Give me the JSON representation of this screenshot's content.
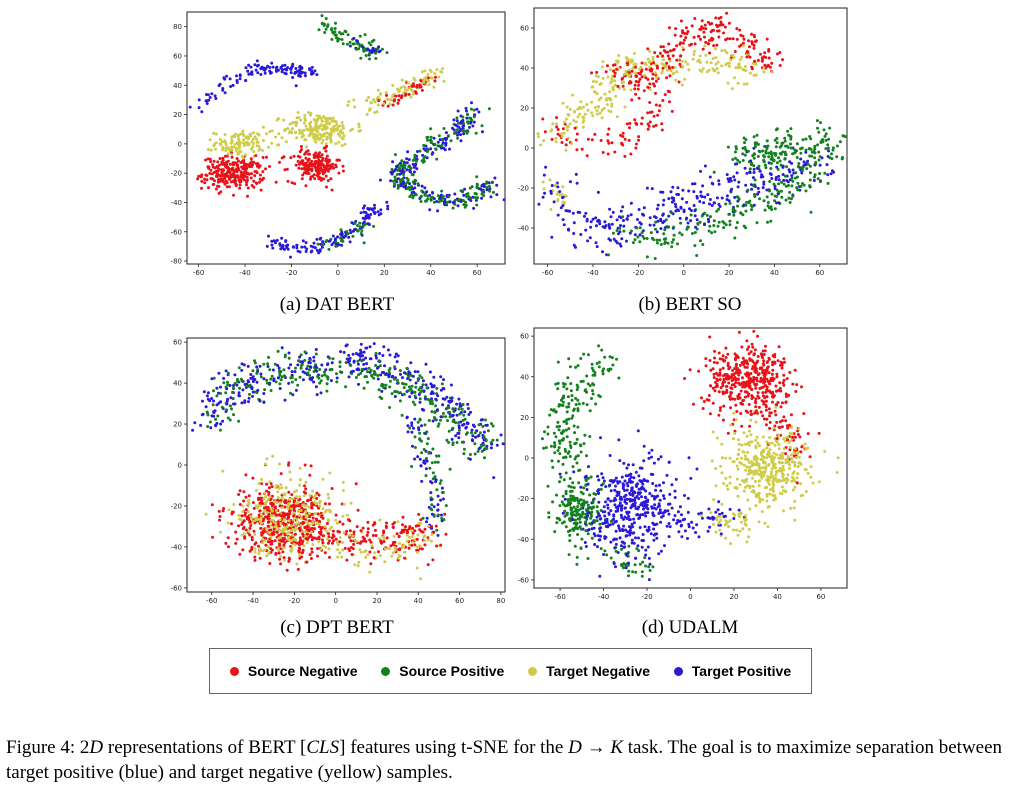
{
  "colors": {
    "source_negative": "#e8131a",
    "source_positive": "#14811f",
    "target_negative": "#cfcc4a",
    "target_positive": "#2a1ad6"
  },
  "legend": [
    {
      "label": "Source Negative",
      "color": "#e8131a"
    },
    {
      "label": "Source Positive",
      "color": "#14811f"
    },
    {
      "label": "Target Negative",
      "color": "#cfcc4a"
    },
    {
      "label": "Target Positive",
      "color": "#2a1ad6"
    }
  ],
  "figure_caption": {
    "lead": "Figure 4: 2",
    "d": "D",
    "mid1": " representations of BERT [",
    "cls": "CLS",
    "mid2": "] features using t-SNE for the ",
    "task": "D → K",
    "tail": " task. The goal is to maximize separation between target positive (blue) and target negative (yellow) samples."
  },
  "chart_data": [
    {
      "type": "scatter",
      "caption": "(a) DAT BERT",
      "xlim": [
        -65,
        72
      ],
      "ylim": [
        -82,
        90
      ],
      "xticks": [
        -60,
        -40,
        -20,
        0,
        20,
        40,
        60
      ],
      "yticks": [
        -80,
        -60,
        -40,
        -20,
        0,
        20,
        40,
        60,
        80
      ],
      "clusters": [
        {
          "class": "target_positive",
          "path": [
            [
              -62,
              24
            ],
            [
              -50,
              38
            ],
            [
              -38,
              50
            ],
            [
              -28,
              52
            ],
            [
              -18,
              50
            ],
            [
              -10,
              48
            ]
          ],
          "spread": 2.5,
          "n": 120
        },
        {
          "class": "source_positive",
          "path": [
            [
              -8,
              84
            ],
            [
              -2,
              76
            ],
            [
              6,
              70
            ],
            [
              12,
              66
            ],
            [
              16,
              62
            ]
          ],
          "spread": 2.5,
          "n": 70
        },
        {
          "class": "target_positive",
          "path": [
            [
              5,
              72
            ],
            [
              12,
              66
            ],
            [
              16,
              62
            ]
          ],
          "spread": 1.5,
          "n": 20
        },
        {
          "class": "source_negative",
          "center": [
            -45,
            -20
          ],
          "rx": 12,
          "ry": 10,
          "n": 260
        },
        {
          "class": "target_negative",
          "center": [
            -42,
            0
          ],
          "rx": 10,
          "ry": 8,
          "n": 110
        },
        {
          "class": "source_negative",
          "center": [
            -10,
            -15
          ],
          "rx": 10,
          "ry": 10,
          "n": 180
        },
        {
          "class": "target_negative",
          "center": [
            -8,
            10
          ],
          "rx": 14,
          "ry": 10,
          "n": 200
        },
        {
          "class": "target_negative",
          "path": [
            [
              10,
              26
            ],
            [
              20,
              32
            ],
            [
              30,
              38
            ],
            [
              38,
              44
            ],
            [
              42,
              46
            ]
          ],
          "spread": 3,
          "n": 90
        },
        {
          "class": "source_negative",
          "path": [
            [
              20,
              28
            ],
            [
              28,
              34
            ],
            [
              34,
              40
            ],
            [
              40,
              46
            ]
          ],
          "spread": 2.5,
          "n": 40
        },
        {
          "class": "target_positive",
          "path": [
            [
              -30,
              -66
            ],
            [
              -20,
              -70
            ],
            [
              -10,
              -72
            ],
            [
              0,
              -66
            ],
            [
              8,
              -58
            ],
            [
              14,
              -48
            ],
            [
              18,
              -44
            ]
          ],
          "spread": 2.5,
          "n": 130
        },
        {
          "class": "source_positive",
          "path": [
            [
              -5,
              -70
            ],
            [
              5,
              -62
            ],
            [
              12,
              -52
            ]
          ],
          "spread": 2.5,
          "n": 30
        },
        {
          "class": "target_positive",
          "path": [
            [
              58,
              28
            ],
            [
              56,
              12
            ],
            [
              44,
              0
            ],
            [
              30,
              -12
            ],
            [
              26,
              -22
            ],
            [
              34,
              -34
            ],
            [
              50,
              -40
            ],
            [
              62,
              -34
            ],
            [
              68,
              -26
            ]
          ],
          "spread": 3,
          "n": 200
        },
        {
          "class": "source_positive",
          "path": [
            [
              58,
              26
            ],
            [
              55,
              10
            ],
            [
              42,
              -2
            ],
            [
              30,
              -14
            ],
            [
              28,
              -24
            ],
            [
              36,
              -36
            ],
            [
              52,
              -40
            ],
            [
              64,
              -30
            ]
          ],
          "spread": 3,
          "n": 180
        }
      ]
    },
    {
      "type": "scatter",
      "caption": "(b) BERT SO",
      "xlim": [
        -66,
        72
      ],
      "ylim": [
        -58,
        70
      ],
      "xticks": [
        -60,
        -40,
        -20,
        0,
        20,
        40,
        60
      ],
      "yticks": [
        -40,
        -20,
        0,
        20,
        40,
        60
      ],
      "clusters": [
        {
          "class": "source_negative",
          "path": [
            [
              -30,
              38
            ],
            [
              -20,
              36
            ],
            [
              -8,
              42
            ],
            [
              0,
              56
            ],
            [
              10,
              60
            ],
            [
              20,
              56
            ],
            [
              30,
              50
            ],
            [
              40,
              42
            ]
          ],
          "spread": 4,
          "n": 230
        },
        {
          "class": "source_negative",
          "path": [
            [
              -58,
              10
            ],
            [
              -48,
              4
            ],
            [
              -34,
              0
            ],
            [
              -20,
              6
            ],
            [
              -10,
              20
            ],
            [
              -16,
              30
            ]
          ],
          "spread": 4,
          "n": 90
        },
        {
          "class": "target_negative",
          "path": [
            [
              -38,
              28
            ],
            [
              -28,
              38
            ],
            [
              -18,
              44
            ],
            [
              -6,
              40
            ],
            [
              10,
              42
            ],
            [
              24,
              42
            ],
            [
              32,
              40
            ]
          ],
          "spread": 4,
          "n": 170
        },
        {
          "class": "target_negative",
          "path": [
            [
              -60,
              0
            ],
            [
              -54,
              8
            ],
            [
              -48,
              16
            ],
            [
              -40,
              22
            ],
            [
              -30,
              24
            ]
          ],
          "spread": 4,
          "n": 80
        },
        {
          "class": "target_negative",
          "path": [
            [
              -56,
              -18
            ],
            [
              -52,
              -28
            ]
          ],
          "spread": 3,
          "n": 20
        },
        {
          "class": "target_positive",
          "path": [
            [
              -56,
              -20
            ],
            [
              -48,
              -34
            ],
            [
              -36,
              -40
            ],
            [
              -20,
              -38
            ],
            [
              -4,
              -30
            ],
            [
              10,
              -26
            ],
            [
              24,
              -18
            ],
            [
              36,
              -14
            ],
            [
              48,
              -12
            ],
            [
              58,
              -10
            ]
          ],
          "spread": 6,
          "n": 320
        },
        {
          "class": "source_positive",
          "path": [
            [
              -30,
              -44
            ],
            [
              -12,
              -46
            ],
            [
              4,
              -40
            ],
            [
              20,
              -36
            ],
            [
              34,
              -28
            ],
            [
              44,
              -22
            ],
            [
              54,
              -14
            ],
            [
              60,
              -4
            ],
            [
              62,
              2
            ],
            [
              50,
              4
            ],
            [
              36,
              0
            ],
            [
              22,
              -6
            ]
          ],
          "spread": 5,
          "n": 320
        },
        {
          "class": "source_positive",
          "path": [
            [
              30,
              -6
            ],
            [
              40,
              -4
            ],
            [
              48,
              -2
            ]
          ],
          "spread": 3,
          "n": 40
        }
      ]
    },
    {
      "type": "scatter",
      "caption": "(c) DPT BERT",
      "xlim": [
        -72,
        82
      ],
      "ylim": [
        -62,
        62
      ],
      "xticks": [
        -60,
        -40,
        -20,
        0,
        20,
        40,
        60,
        80
      ],
      "yticks": [
        -60,
        -40,
        -20,
        0,
        20,
        40,
        60
      ],
      "clusters": [
        {
          "class": "target_positive",
          "path": [
            [
              -62,
              22
            ],
            [
              -56,
              32
            ],
            [
              -44,
              40
            ],
            [
              -30,
              44
            ],
            [
              -14,
              44
            ],
            [
              0,
              50
            ],
            [
              14,
              52
            ],
            [
              26,
              48
            ],
            [
              36,
              42
            ],
            [
              48,
              34
            ],
            [
              58,
              26
            ],
            [
              66,
              18
            ],
            [
              74,
              8
            ]
          ],
          "spread": 5,
          "n": 380
        },
        {
          "class": "source_positive",
          "path": [
            [
              -60,
              24
            ],
            [
              -50,
              36
            ],
            [
              -36,
              42
            ],
            [
              -20,
              46
            ],
            [
              -4,
              44
            ],
            [
              10,
              46
            ],
            [
              22,
              44
            ],
            [
              34,
              40
            ],
            [
              46,
              30
            ],
            [
              56,
              22
            ],
            [
              66,
              14
            ],
            [
              72,
              8
            ]
          ],
          "spread": 5,
          "n": 300
        },
        {
          "class": "target_positive",
          "path": [
            [
              36,
              24
            ],
            [
              40,
              12
            ],
            [
              46,
              0
            ],
            [
              50,
              -20
            ],
            [
              46,
              -34
            ]
          ],
          "spread": 3,
          "n": 60
        },
        {
          "class": "source_positive",
          "path": [
            [
              38,
              22
            ],
            [
              44,
              8
            ],
            [
              48,
              -10
            ],
            [
              48,
              -28
            ]
          ],
          "spread": 3,
          "n": 50
        },
        {
          "class": "source_negative",
          "center": [
            -25,
            -28
          ],
          "rx": 22,
          "ry": 16,
          "n": 520
        },
        {
          "class": "target_negative",
          "center": [
            -22,
            -26
          ],
          "rx": 24,
          "ry": 17,
          "n": 300
        },
        {
          "class": "source_negative",
          "path": [
            [
              0,
              -34
            ],
            [
              14,
              -36
            ],
            [
              26,
              -34
            ],
            [
              36,
              -36
            ],
            [
              44,
              -32
            ]
          ],
          "spread": 6,
          "n": 130
        },
        {
          "class": "target_negative",
          "path": [
            [
              4,
              -36
            ],
            [
              18,
              -40
            ],
            [
              32,
              -40
            ],
            [
              42,
              -36
            ]
          ],
          "spread": 5,
          "n": 80
        }
      ]
    },
    {
      "type": "scatter",
      "caption": "(d) UDALM",
      "xlim": [
        -72,
        72
      ],
      "ylim": [
        -64,
        64
      ],
      "xticks": [
        -60,
        -40,
        -20,
        0,
        20,
        40,
        60
      ],
      "yticks": [
        -60,
        -40,
        -20,
        0,
        20,
        40,
        60
      ],
      "clusters": [
        {
          "class": "source_positive",
          "path": [
            [
              -38,
              48
            ],
            [
              -46,
              40
            ],
            [
              -56,
              30
            ],
            [
              -60,
              20
            ],
            [
              -60,
              6
            ],
            [
              -52,
              0
            ]
          ],
          "spread": 5,
          "n": 170
        },
        {
          "class": "source_positive",
          "center": [
            -52,
            -26
          ],
          "rx": 10,
          "ry": 16,
          "n": 180
        },
        {
          "class": "source_positive",
          "path": [
            [
              -38,
              -44
            ],
            [
              -30,
              -50
            ],
            [
              -20,
              -52
            ]
          ],
          "spread": 4,
          "n": 40
        },
        {
          "class": "target_positive",
          "center": [
            -28,
            -24
          ],
          "rx": 20,
          "ry": 22,
          "n": 420
        },
        {
          "class": "target_positive",
          "path": [
            [
              -10,
              -28
            ],
            [
              0,
              -34
            ],
            [
              10,
              -30
            ],
            [
              20,
              -28
            ]
          ],
          "spread": 4,
          "n": 50
        },
        {
          "class": "source_negative",
          "center": [
            26,
            38
          ],
          "rx": 18,
          "ry": 16,
          "n": 420
        },
        {
          "class": "source_negative",
          "path": [
            [
              40,
              24
            ],
            [
              46,
              12
            ],
            [
              48,
              0
            ]
          ],
          "spread": 5,
          "n": 60
        },
        {
          "class": "target_negative",
          "center": [
            34,
            -6
          ],
          "rx": 18,
          "ry": 18,
          "n": 380
        },
        {
          "class": "target_negative",
          "path": [
            [
              12,
              -30
            ],
            [
              20,
              -34
            ],
            [
              28,
              -32
            ]
          ],
          "spread": 4,
          "n": 40
        }
      ]
    }
  ]
}
